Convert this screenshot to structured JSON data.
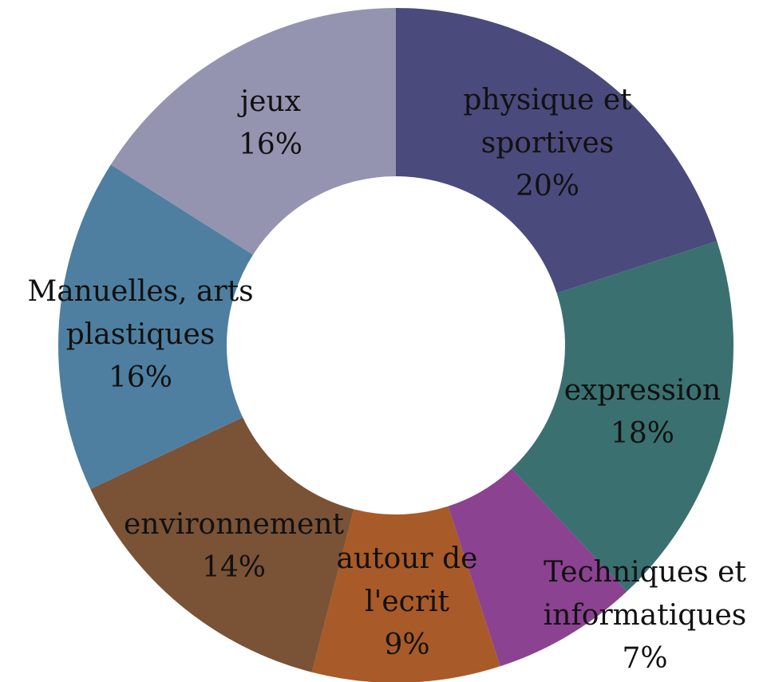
{
  "chart_data": {
    "type": "donut",
    "categories": [
      [
        "physique et",
        "sportives"
      ],
      [
        "expression"
      ],
      [
        "Techniques et",
        "informatiques"
      ],
      [
        "autour de",
        "l'ecrit"
      ],
      [
        "environnement"
      ],
      [
        "Manuelles, arts",
        "plastiques"
      ],
      [
        "jeux"
      ]
    ],
    "values": [
      20,
      18,
      7,
      9,
      14,
      16,
      16
    ],
    "value_labels": [
      "20%",
      "18%",
      "7%",
      "9%",
      "14%",
      "16%",
      "16%"
    ],
    "colors": [
      "#4a4a7c",
      "#3a7070",
      "#8b4290",
      "#a85a28",
      "#7a5236",
      "#4e7fa0",
      "#9494b0"
    ]
  }
}
